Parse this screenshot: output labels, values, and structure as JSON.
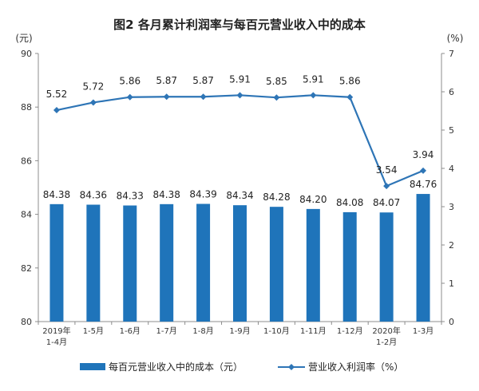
{
  "chart_data": {
    "type": "bar",
    "title": "图2 各月累计利润率与每百元营业收入中的成本",
    "categories": [
      [
        "2019年",
        "1-4月"
      ],
      [
        "1-5月"
      ],
      [
        "1-6月"
      ],
      [
        "1-7月"
      ],
      [
        "1-8月"
      ],
      [
        "1-9月"
      ],
      [
        "1-10月"
      ],
      [
        "1-11月"
      ],
      [
        "1-12月"
      ],
      [
        "2020年",
        "1-2月"
      ],
      [
        "1-3月"
      ]
    ],
    "y_left": {
      "unit_label": "(元)",
      "ylim": [
        80,
        90
      ],
      "ticks": [
        "80",
        "82",
        "84",
        "86",
        "88",
        "90"
      ]
    },
    "y_right": {
      "unit_label": "(%)",
      "ylim": [
        0,
        7
      ],
      "ticks": [
        "0",
        "1",
        "2",
        "3",
        "4",
        "5",
        "6",
        "7"
      ]
    },
    "series": [
      {
        "name": "每百元营业收入中的成本（元）",
        "kind": "bar",
        "axis": "left",
        "color": "#1f74ba",
        "values": [
          84.38,
          84.36,
          84.33,
          84.38,
          84.39,
          84.34,
          84.28,
          84.2,
          84.08,
          84.07,
          84.76
        ],
        "labels": [
          "84.38",
          "84.36",
          "84.33",
          "84.38",
          "84.39",
          "84.34",
          "84.28",
          "84.20",
          "84.08",
          "84.07",
          "84.76"
        ]
      },
      {
        "name": "营业收入利润率（%）",
        "kind": "line",
        "axis": "right",
        "color": "#2e75b6",
        "values": [
          5.52,
          5.72,
          5.86,
          5.87,
          5.87,
          5.91,
          5.85,
          5.91,
          5.86,
          3.54,
          3.94
        ],
        "labels": [
          "5.52",
          "5.72",
          "5.86",
          "5.87",
          "5.87",
          "5.91",
          "5.85",
          "5.91",
          "5.86",
          "3.54",
          "3.94"
        ]
      }
    ],
    "legend_position": "bottom",
    "grid": false
  }
}
